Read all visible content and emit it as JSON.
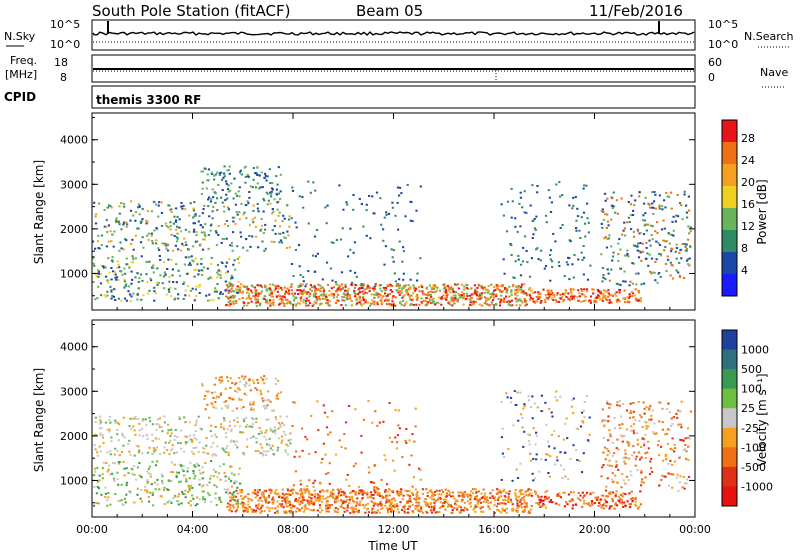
{
  "header": {
    "station": "South Pole Station (fitACF)",
    "beam": "Beam 05",
    "date": "11/Feb/2016"
  },
  "panels": {
    "nsky_label": "N.Sky",
    "nsky_top": "10^5",
    "nsky_bottom": "10^0",
    "nsearch_label": "N.Search",
    "nsearch_top": "10^5",
    "nsearch_bottom": "10^0",
    "freq_label": "Freq.",
    "freq_unit": "[MHz]",
    "freq_top": "18",
    "freq_bottom": "8",
    "nave_label": "Nave",
    "nave_top": "60",
    "nave_bottom": "0",
    "cpid_label": "CPID",
    "cpid_value": "themis 3300 RF"
  },
  "chart_data": [
    {
      "type": "heatmap",
      "ylabel": "Slant Range [km]",
      "xlabel": "Time UT",
      "ylim": [
        180,
        4600
      ],
      "yticks": [
        "1000",
        "2000",
        "3000",
        "4000"
      ],
      "xticks": [
        "00:00",
        "04:00",
        "08:00",
        "12:00",
        "16:00",
        "20:00",
        "00:00"
      ],
      "colorbar_label": "Power [dB]",
      "colorbar_ticks": [
        "28",
        "24",
        "20",
        "16",
        "12",
        "8",
        "4"
      ],
      "colorbar_colors": [
        "#e8141a",
        "#f07018",
        "#f5a020",
        "#f0d020",
        "#6ab45a",
        "#2f8b65",
        "#1b47a8",
        "#1a1aff"
      ]
    },
    {
      "type": "heatmap",
      "ylabel": "Slant Range [km]",
      "xlabel": "Time UT",
      "ylim": [
        180,
        4600
      ],
      "yticks": [
        "1000",
        "2000",
        "3000",
        "4000"
      ],
      "xticks": [
        "00:00",
        "04:00",
        "08:00",
        "12:00",
        "16:00",
        "20:00",
        "00:00"
      ],
      "colorbar_label": "Velocity [m s⁻¹]",
      "colorbar_ticks": [
        "1000",
        "500",
        "100",
        "25",
        "-25",
        "-100",
        "-500",
        "-1000"
      ],
      "colorbar_colors": [
        "#2040a0",
        "#2f7080",
        "#3a9a50",
        "#6cc040",
        "#c8c8c8",
        "#f5a020",
        "#f07018",
        "#e03018",
        "#e81010"
      ]
    }
  ]
}
